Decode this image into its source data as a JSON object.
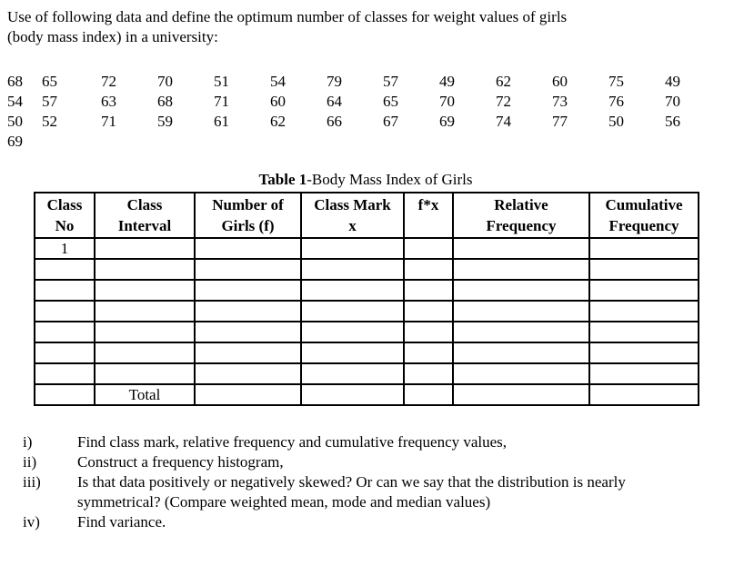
{
  "intro": {
    "line1": "Use of following data and define the optimum number of classes for weight values of girls",
    "line2": "(body mass index) in a university:"
  },
  "raw_data": {
    "rows": [
      [
        "68",
        "65",
        "72",
        "70",
        "51",
        "54",
        "79",
        "57",
        "49",
        "62",
        "60",
        "75",
        "49"
      ],
      [
        "54",
        "57",
        "63",
        "68",
        "71",
        "60",
        "64",
        "65",
        "70",
        "72",
        "73",
        "76",
        "70"
      ],
      [
        "50",
        "52",
        "71",
        "59",
        "61",
        "62",
        "66",
        "67",
        "69",
        "74",
        "77",
        "50",
        "56"
      ],
      [
        "69"
      ]
    ]
  },
  "table": {
    "caption_bold": "Table 1",
    "caption_rest": "-Body Mass Index of Girls",
    "headers": [
      {
        "line1": "Class",
        "line2": "No"
      },
      {
        "line1": "Class",
        "line2": "Interval"
      },
      {
        "line1": "Number of",
        "line2": "Girls (f)"
      },
      {
        "line1": "Class Mark",
        "line2": "x"
      },
      {
        "line1": "f*x",
        "line2": ""
      },
      {
        "line1": "Relative",
        "line2": "Frequency"
      },
      {
        "line1": "Cumulative",
        "line2": "Frequency"
      }
    ],
    "first_row_class_no": "1",
    "empty_row_count": 6,
    "total_label": "Total"
  },
  "questions": [
    {
      "label": "i)",
      "text": "Find class mark, relative frequency and cumulative frequency values,"
    },
    {
      "label": "ii)",
      "text": "Construct a frequency histogram,"
    },
    {
      "label": "iii)",
      "text": "Is that data positively or negatively skewed? Or can we say that the distribution is nearly symmetrical? (Compare weighted mean, mode and median values)"
    },
    {
      "label": "iv)",
      "text": "Find variance."
    }
  ]
}
